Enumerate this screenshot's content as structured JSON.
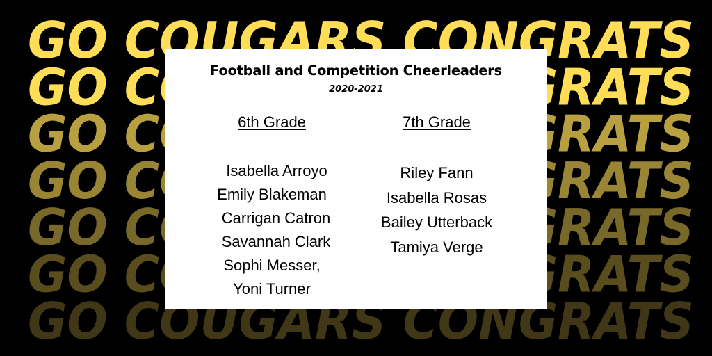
{
  "background": {
    "text": "GO COUGARS CONGRATS",
    "color": "#FFDD57",
    "row_opacities": [
      1,
      1,
      0.72,
      0.6,
      0.47,
      0.35,
      0.25
    ]
  },
  "card": {
    "title": "Football and Competition Cheerleaders",
    "year": "2020-2021",
    "columns": [
      {
        "heading": "6th Grade",
        "names": [
          "Isabella Arroyo",
          "Emily Blakeman",
          "Carrigan Catron",
          "Savannah Clark",
          "Sophi Messer,",
          "Yoni Turner"
        ]
      },
      {
        "heading": "7th Grade",
        "names": [
          "Riley Fann",
          "Isabella Rosas",
          "Bailey Utterback",
          "Tamiya Verge"
        ]
      }
    ]
  }
}
